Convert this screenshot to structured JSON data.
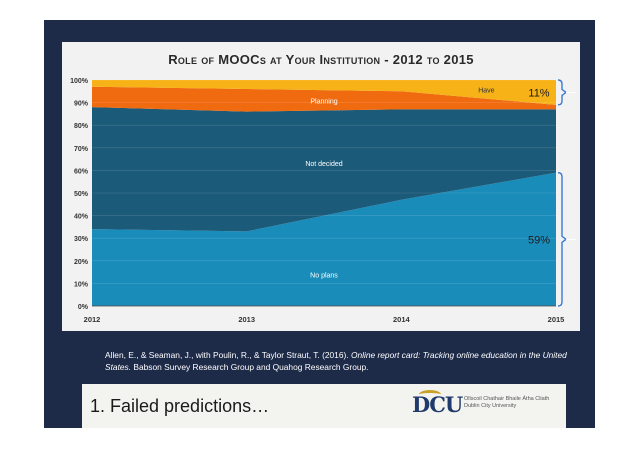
{
  "chart_data": {
    "type": "area",
    "title": "Role of MOOCs at Your Institution - 2012 to 2015",
    "x": [
      "2012",
      "2013",
      "2014",
      "2015"
    ],
    "y_ticks": [
      "0%",
      "10%",
      "20%",
      "30%",
      "40%",
      "50%",
      "60%",
      "70%",
      "80%",
      "90%",
      "100%"
    ],
    "ylim": [
      0,
      100
    ],
    "stacked": true,
    "series": [
      {
        "name": "No plans",
        "values": [
          34,
          33,
          47,
          59
        ],
        "color": "#1a8cba"
      },
      {
        "name": "Not decided",
        "values": [
          54,
          53,
          40,
          28
        ],
        "color": "#1b5a78"
      },
      {
        "name": "Planning",
        "values": [
          9,
          10,
          8,
          2
        ],
        "color": "#f06a10"
      },
      {
        "name": "Have",
        "values": [
          3,
          4,
          5,
          11
        ],
        "color": "#f7b218"
      }
    ],
    "annotations": [
      {
        "text": "11%",
        "series": "Have"
      },
      {
        "text": "59%",
        "series": "No plans"
      }
    ]
  },
  "citation": {
    "authors": "Allen, E., & Seaman, J., with Poulin, R., & Taylor Straut, T. (2016).",
    "title": "Online report card: Tracking online education in the United States.",
    "publisher": "Babson Survey Research Group and Quahog Research Group."
  },
  "footer": {
    "title": "1. Failed predictions…",
    "logo_text": "DCU",
    "logo_line1": "Ollscoil Chathair Bhaile Átha Cliath",
    "logo_line2": "Dublin City University"
  },
  "colors": {
    "background": "#1d2a48",
    "bracket": "#3a7bd5"
  }
}
